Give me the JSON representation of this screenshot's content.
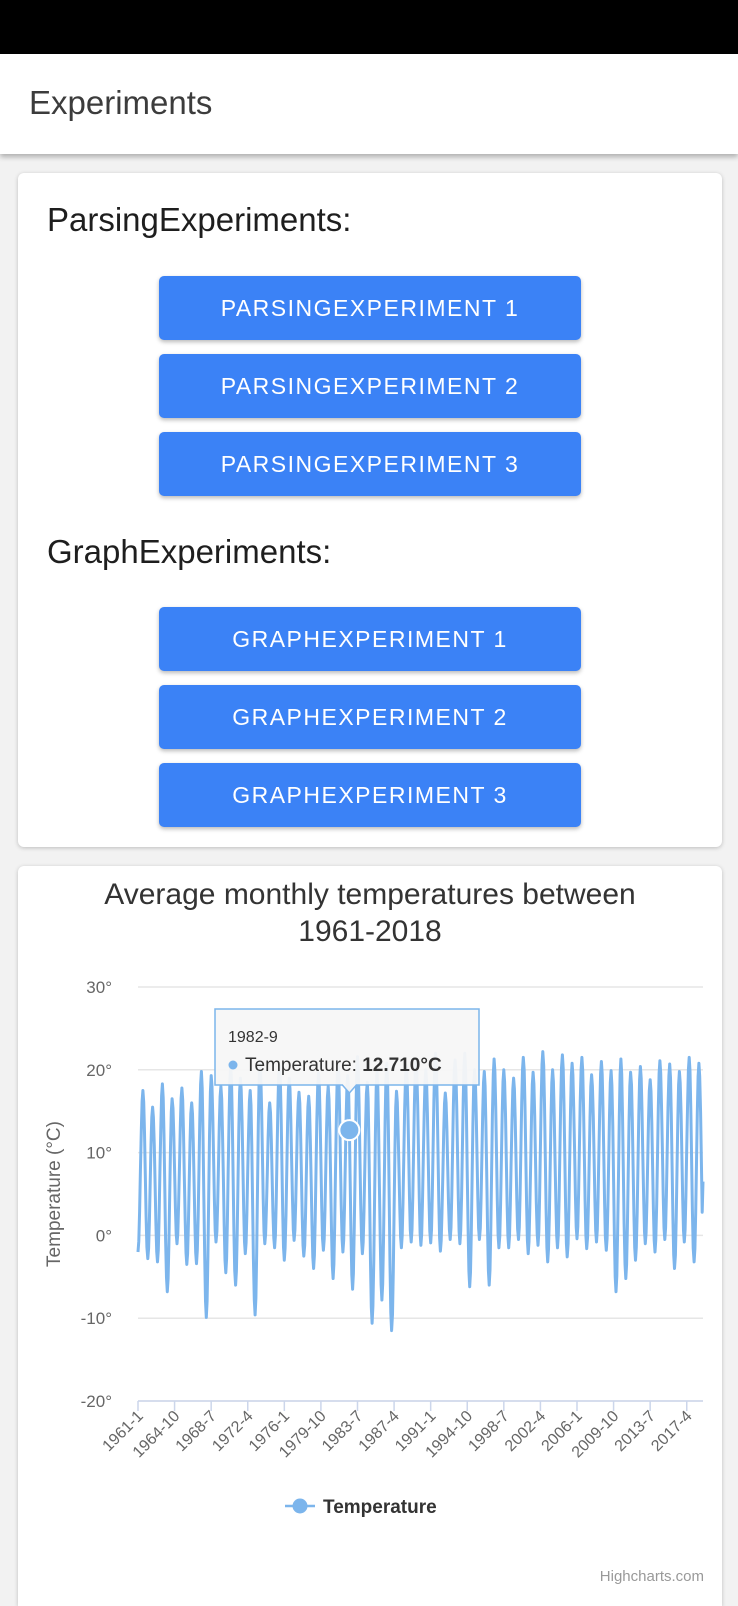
{
  "app": {
    "title": "Experiments"
  },
  "sections": [
    {
      "title": "ParsingExperiments:",
      "buttons": [
        "PARSINGEXPERIMENT 1",
        "PARSINGEXPERIMENT 2",
        "PARSINGEXPERIMENT 3"
      ]
    },
    {
      "title": "GraphExperiments:",
      "buttons": [
        "GRAPHEXPERIMENT 1",
        "GRAPHEXPERIMENT 2",
        "GRAPHEXPERIMENT 3"
      ]
    }
  ],
  "colors": {
    "accent": "#3b82f6",
    "series": "#7cb5ec"
  },
  "chart_data": {
    "type": "line",
    "title": "Average monthly temperatures between 1961-2018",
    "title_lines": [
      "Average monthly temperatures between",
      "1961-2018"
    ],
    "ylabel": "Temperature (°C)",
    "ylim": [
      -20,
      30
    ],
    "yticks": [
      "-20°",
      "-10°",
      "0°",
      "10°",
      "20°",
      "30°"
    ],
    "ytick_values": [
      -20,
      -10,
      0,
      10,
      20,
      30
    ],
    "xticks": [
      "1961-1",
      "1964-10",
      "1968-7",
      "1972-4",
      "1976-1",
      "1979-10",
      "1983-7",
      "1987-4",
      "1991-1",
      "1994-10",
      "1998-7",
      "2002-4",
      "2006-1",
      "2009-10",
      "2013-7",
      "2017-4"
    ],
    "x_range": [
      "1961-1",
      "2018-12"
    ],
    "legend": {
      "position": "bottom-center",
      "label": "Temperature"
    },
    "grid": true,
    "tooltip": {
      "x": "1982-9",
      "series": "Temperature",
      "label": "Temperature: ",
      "value": "12.710°C"
    },
    "credits": "Highcharts.com",
    "series": [
      {
        "name": "Temperature",
        "annual_max": [
          17.5,
          15.5,
          18.3,
          16.5,
          17.8,
          16.0,
          19.8,
          19.3,
          18.0,
          20.5,
          19.0,
          17.5,
          20.8,
          16.0,
          20.5,
          19.0,
          17.3,
          16.8,
          19.6,
          18.0,
          20.8,
          19.3,
          21.6,
          18.5,
          19.8,
          20.8,
          17.4,
          20.5,
          21.3,
          20.0,
          22.0,
          17.2,
          21.2,
          22.0,
          20.0,
          19.8,
          21.3,
          20.0,
          19.0,
          21.5,
          19.7,
          22.2,
          20.0,
          21.8,
          20.8,
          21.5,
          19.4,
          21.0,
          19.9,
          21.3,
          19.7,
          20.4,
          18.8,
          21.1,
          20.7,
          19.8,
          21.5,
          20.8
        ],
        "annual_min": [
          -2.0,
          -2.8,
          -3.2,
          -6.8,
          -1.0,
          -3.5,
          -3.4,
          -9.9,
          -0.8,
          -4.5,
          -6.0,
          -2.2,
          -9.6,
          -1.0,
          -1.5,
          -3.0,
          -0.6,
          -2.5,
          -4.0,
          -1.8,
          -5.2,
          -2.0,
          -6.5,
          -2.2,
          -10.6,
          -7.8,
          -11.5,
          -1.5,
          -0.8,
          -1.2,
          -0.9,
          -1.9,
          -0.5,
          -1.0,
          -6.2,
          -0.5,
          -6.0,
          -1.5,
          -1.5,
          -0.5,
          -2.2,
          -1.2,
          -3.2,
          -1.5,
          -2.6,
          -0.4,
          -1.6,
          -0.8,
          -1.8,
          -6.8,
          -5.2,
          -3.0,
          -1.0,
          -2.0,
          -0.5,
          -4.0,
          -0.8,
          -3.2
        ],
        "last_value": 6.5
      }
    ]
  }
}
